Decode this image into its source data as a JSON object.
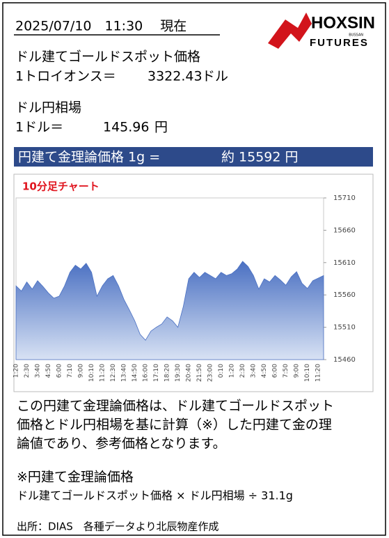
{
  "header": {
    "datetime": "2025/07/10　11:30　 現在"
  },
  "logo": {
    "name": "HOXSIN",
    "sub": "BUSSAN",
    "tag": "FUTURES"
  },
  "gold": {
    "title": "ドル建てゴールドスポット価格",
    "unit_label": "1トロイオンス＝",
    "price": "3322.43",
    "currency": "ドル"
  },
  "fx": {
    "title": "ドル円相場",
    "unit_label": "1ドル＝",
    "rate": "145.96",
    "currency": "円"
  },
  "banner": {
    "label": "円建て金理論価格 1g =",
    "value": "約 15592 円"
  },
  "chart_data": {
    "type": "area",
    "title": "10分足チャート",
    "color": "#4a70c2",
    "categories": [
      "1:20",
      null,
      "2:30",
      null,
      "3:40",
      null,
      "4:50",
      null,
      "6:00",
      null,
      "7:10",
      null,
      "9:00",
      null,
      "10:10",
      null,
      "11:20",
      null,
      "12:30",
      null,
      "13:40",
      null,
      "14:50",
      null,
      "16:00",
      null,
      "17:10",
      null,
      "18:20",
      null,
      "19:30",
      null,
      "20:40",
      null,
      "21:50",
      null,
      "23:00",
      null,
      "0:10",
      null,
      "1:20",
      null,
      "2:30",
      null,
      "3:40",
      null,
      "4:50",
      null,
      "6:00",
      null,
      "7:50",
      null,
      "9:00",
      null,
      "10:10",
      null,
      "11:20",
      null
    ],
    "values": [
      15574,
      15566,
      15580,
      15569,
      15582,
      15573,
      15563,
      15555,
      15558,
      15574,
      15595,
      15606,
      15600,
      15609,
      15595,
      15558,
      15574,
      15585,
      15590,
      15574,
      15553,
      15537,
      15520,
      15499,
      15490,
      15504,
      15510,
      15515,
      15526,
      15520,
      15510,
      15542,
      15585,
      15595,
      15587,
      15595,
      15590,
      15585,
      15595,
      15590,
      15593,
      15600,
      15612,
      15604,
      15590,
      15569,
      15585,
      15580,
      15590,
      15583,
      15575,
      15588,
      15596,
      15578,
      15570,
      15582,
      15586,
      15590
    ],
    "ylim": [
      15460,
      15710
    ],
    "yticks": [
      15460,
      15510,
      15560,
      15610,
      15660,
      15710
    ],
    "grid": false
  },
  "explanation": {
    "lines": [
      "この円建て金理論価格は、ドル建てゴールドスポット",
      "価格とドル円相場を基に計算（※）した円建て金の理",
      "論値であり、参考価格となります。"
    ]
  },
  "formula": {
    "title": "※円建て金理論価格",
    "text": "ドル建てゴールドスポット価格 × ドル円相場 ÷ 31.1g"
  },
  "source": "出所：DIAS　各種データより北辰物産作成"
}
